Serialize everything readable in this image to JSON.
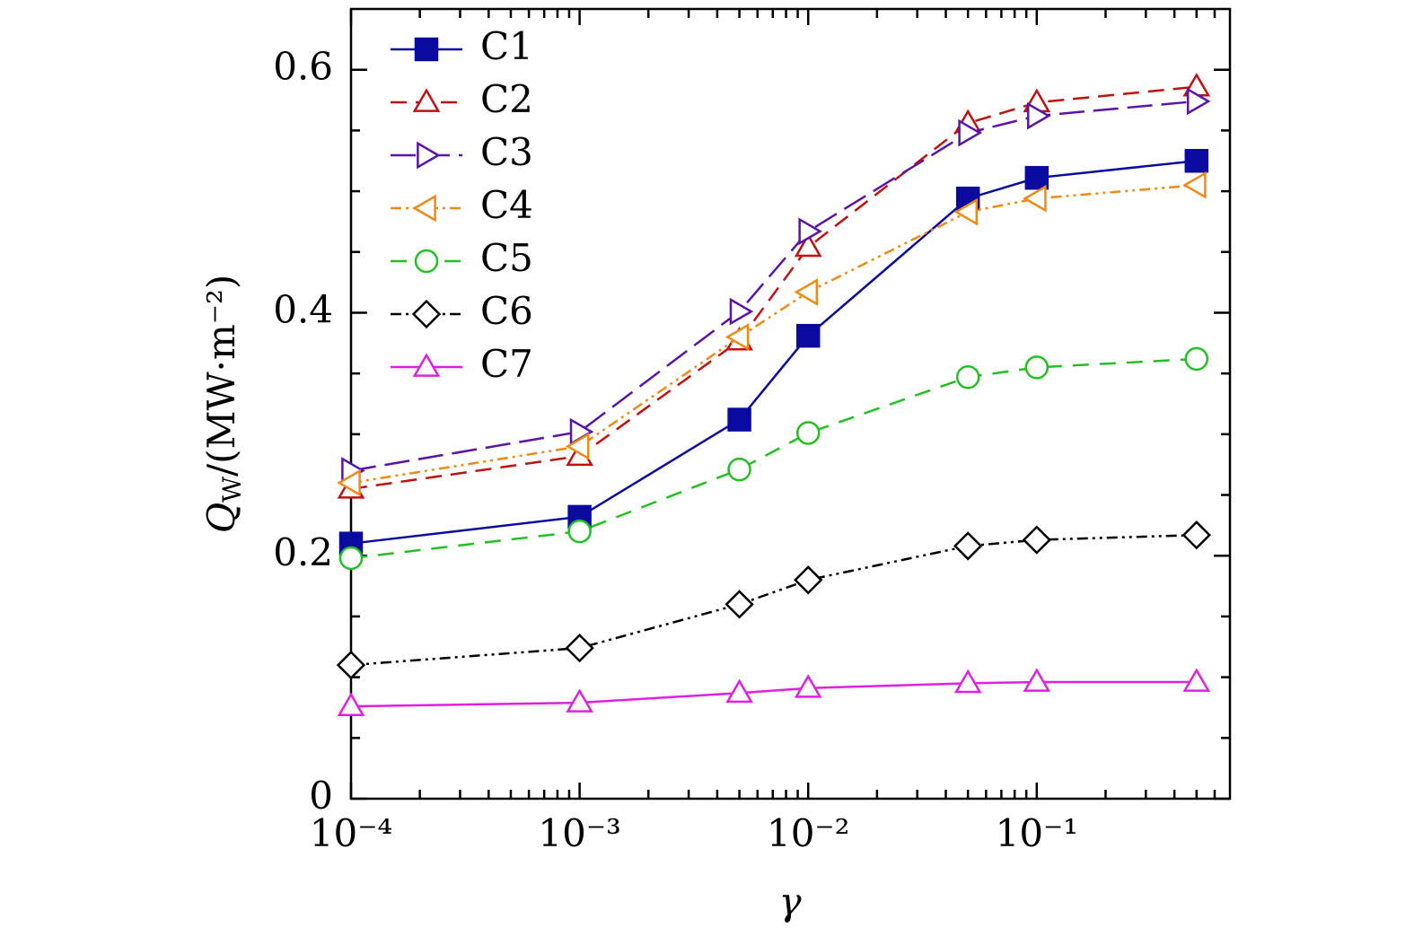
{
  "chart_data": {
    "type": "line",
    "xlabel": "γ",
    "ylabel": [
      "Q",
      "W",
      "/(MW·m⁻²)"
    ],
    "x": [
      0.0001,
      0.001,
      0.005,
      0.01,
      0.05,
      0.1,
      0.5
    ],
    "xlog": true,
    "xlim": [
      0.0001,
      0.7
    ],
    "ylim": [
      0,
      0.65
    ],
    "xticks": [
      {
        "value": 0.0001,
        "label": "10⁻⁴"
      },
      {
        "value": 0.001,
        "label": "10⁻³"
      },
      {
        "value": 0.01,
        "label": "10⁻²"
      },
      {
        "value": 0.1,
        "label": "10⁻¹"
      }
    ],
    "xminor_ticks": [
      0.0002,
      0.0003,
      0.0004,
      0.0005,
      0.0006,
      0.0007,
      0.0008,
      0.0009,
      0.002,
      0.003,
      0.004,
      0.005,
      0.006,
      0.007,
      0.008,
      0.009,
      0.02,
      0.03,
      0.04,
      0.05,
      0.06,
      0.07,
      0.08,
      0.09,
      0.2,
      0.3,
      0.4,
      0.5,
      0.6
    ],
    "yticks": [
      0,
      0.2,
      0.4,
      0.6
    ],
    "yminor_ticks": [
      0.05,
      0.1,
      0.15,
      0.25,
      0.3,
      0.35,
      0.45,
      0.5,
      0.55
    ],
    "legend": "upper left",
    "series": [
      {
        "name": "C1",
        "color": "#0a0aa0",
        "dash": "none",
        "marker": "square-filled",
        "values": [
          0.21,
          0.232,
          0.312,
          0.381,
          0.494,
          0.511,
          0.525
        ]
      },
      {
        "name": "C2",
        "color": "#c01010",
        "dash": "18,10",
        "marker": "triangle-up",
        "values": [
          0.255,
          0.282,
          0.377,
          0.454,
          0.556,
          0.573,
          0.586
        ]
      },
      {
        "name": "C3",
        "color": "#5a14a8",
        "dash": "28,10",
        "marker": "triangle-right",
        "values": [
          0.27,
          0.302,
          0.401,
          0.467,
          0.548,
          0.562,
          0.574
        ]
      },
      {
        "name": "C4",
        "color": "#f08a14",
        "dash": "12,5,3,5,3,5",
        "marker": "triangle-left",
        "values": [
          0.26,
          0.29,
          0.38,
          0.417,
          0.483,
          0.494,
          0.505
        ]
      },
      {
        "name": "C5",
        "color": "#22c022",
        "dash": "18,12",
        "marker": "circle",
        "values": [
          0.198,
          0.22,
          0.271,
          0.301,
          0.347,
          0.355,
          0.362
        ]
      },
      {
        "name": "C6",
        "color": "#000000",
        "dash": "12,5,3,5,3,5",
        "marker": "diamond",
        "values": [
          0.11,
          0.124,
          0.16,
          0.18,
          0.208,
          0.213,
          0.217
        ]
      },
      {
        "name": "C7",
        "color": "#e020e0",
        "dash": "none",
        "marker": "triangle-up",
        "values": [
          0.076,
          0.079,
          0.087,
          0.091,
          0.095,
          0.096,
          0.096
        ]
      }
    ]
  }
}
